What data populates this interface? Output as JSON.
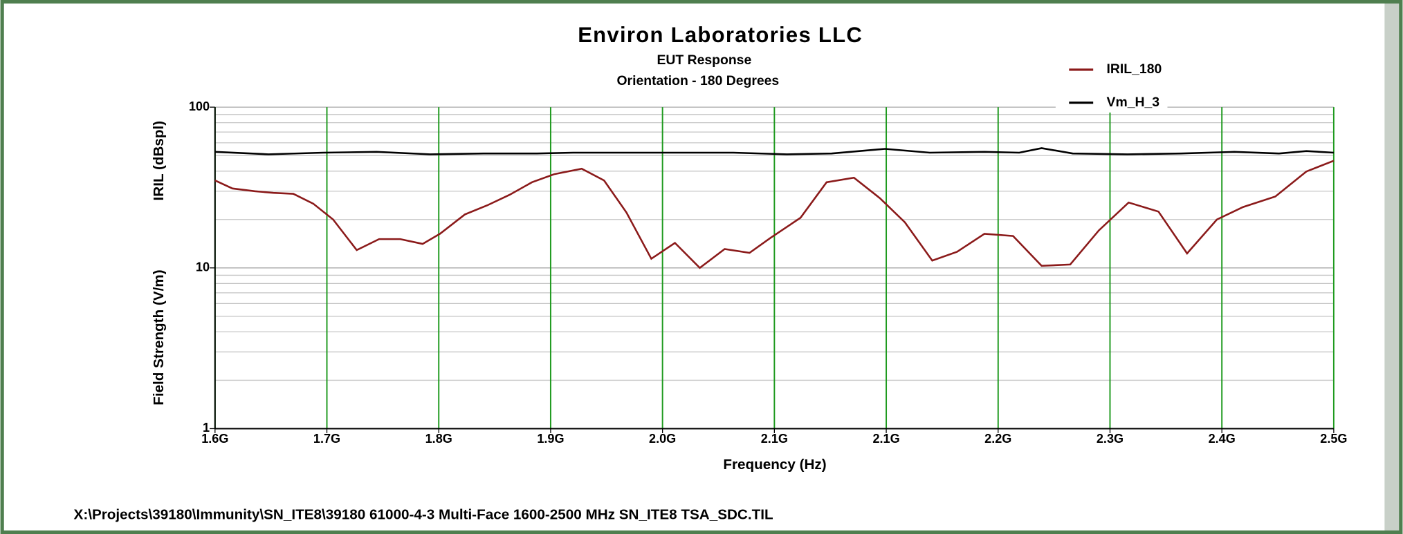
{
  "chart_data": {
    "type": "line",
    "title": "Environ Laboratories LLC",
    "subtitle": [
      "EUT Response",
      "Orientation - 180 Degrees"
    ],
    "y_labels": [
      "IRIL (dBspl)",
      "Field Strength (V/m)"
    ],
    "x_label": "Frequency (Hz)",
    "footer": "X:\\Projects\\39180\\Immunity\\SN_ITE8\\39180 61000-4-3 Multi-Face 1600-2500 MHz SN_ITE8 TSA_SDC.TIL",
    "log_y": true,
    "grid": true,
    "grid_color": "#1e9a1e",
    "xlim": [
      1600000000,
      2500000000
    ],
    "xticks": [
      {
        "value": 1600000000,
        "label": "1.6G"
      },
      {
        "value": 1690000000,
        "label": "1.7G"
      },
      {
        "value": 1780000000,
        "label": "1.8G"
      },
      {
        "value": 1870000000,
        "label": "1.9G"
      },
      {
        "value": 1960000000,
        "label": "2.0G"
      },
      {
        "value": 2050000000,
        "label": "2.1G"
      },
      {
        "value": 2140000000,
        "label": "2.1G"
      },
      {
        "value": 2230000000,
        "label": "2.2G"
      },
      {
        "value": 2320000000,
        "label": "2.3G"
      },
      {
        "value": 2410000000,
        "label": "2.4G"
      },
      {
        "value": 2500000000,
        "label": "2.5G"
      }
    ],
    "ylim": [
      1,
      100
    ],
    "yticks": [
      1,
      10,
      100
    ],
    "series": [
      {
        "name": "IRIL_180",
        "color": "#8b1a1a",
        "x": [
          1600000000,
          1614000000,
          1632000000,
          1647000000,
          1663000000,
          1679000000,
          1695000000,
          1714000000,
          1732000000,
          1749000000,
          1767000000,
          1781000000,
          1801000000,
          1819000000,
          1837000000,
          1855000000,
          1873000000,
          1895000000,
          1913000000,
          1931000000,
          1951000000,
          1970000000,
          1990000000,
          2010000000,
          2030000000,
          2047000000,
          2071000000,
          2092000000,
          2114000000,
          2135000000,
          2155000000,
          2177000000,
          2197000000,
          2219000000,
          2242000000,
          2265000000,
          2288000000,
          2311000000,
          2335000000,
          2359000000,
          2382000000,
          2406000000,
          2427000000,
          2453000000,
          2478000000,
          2500000000
        ],
        "values": [
          35.0,
          31.2,
          30.0,
          29.3,
          28.9,
          25.1,
          20.0,
          12.9,
          15.1,
          15.1,
          14.1,
          16.3,
          21.5,
          24.5,
          28.5,
          34.1,
          38.3,
          41.4,
          35.0,
          22.1,
          11.4,
          14.3,
          10.0,
          13.1,
          12.4,
          15.4,
          20.5,
          34.1,
          36.4,
          27.1,
          19.2,
          11.1,
          12.6,
          16.3,
          15.8,
          10.3,
          10.5,
          17.1,
          25.5,
          22.4,
          12.3,
          20.0,
          23.9,
          27.8,
          39.8,
          46.4
        ]
      },
      {
        "name": "Vm_H_3",
        "color": "#000000",
        "x": [
          1600000000,
          1643000000,
          1687000000,
          1730000000,
          1773000000,
          1816000000,
          1859000000,
          1888000000,
          1931000000,
          1974000000,
          2017000000,
          2060000000,
          2096000000,
          2139000000,
          2175000000,
          2219000000,
          2247000000,
          2265000000,
          2290000000,
          2334000000,
          2377000000,
          2420000000,
          2456000000,
          2478000000,
          2500000000
        ],
        "values": [
          52.7,
          50.9,
          52.1,
          52.7,
          50.9,
          51.5,
          51.5,
          52.1,
          52.1,
          52.1,
          52.1,
          50.9,
          51.5,
          55.0,
          52.1,
          52.7,
          52.1,
          55.6,
          51.5,
          50.9,
          51.5,
          52.7,
          51.5,
          53.3,
          52.1
        ]
      }
    ]
  }
}
